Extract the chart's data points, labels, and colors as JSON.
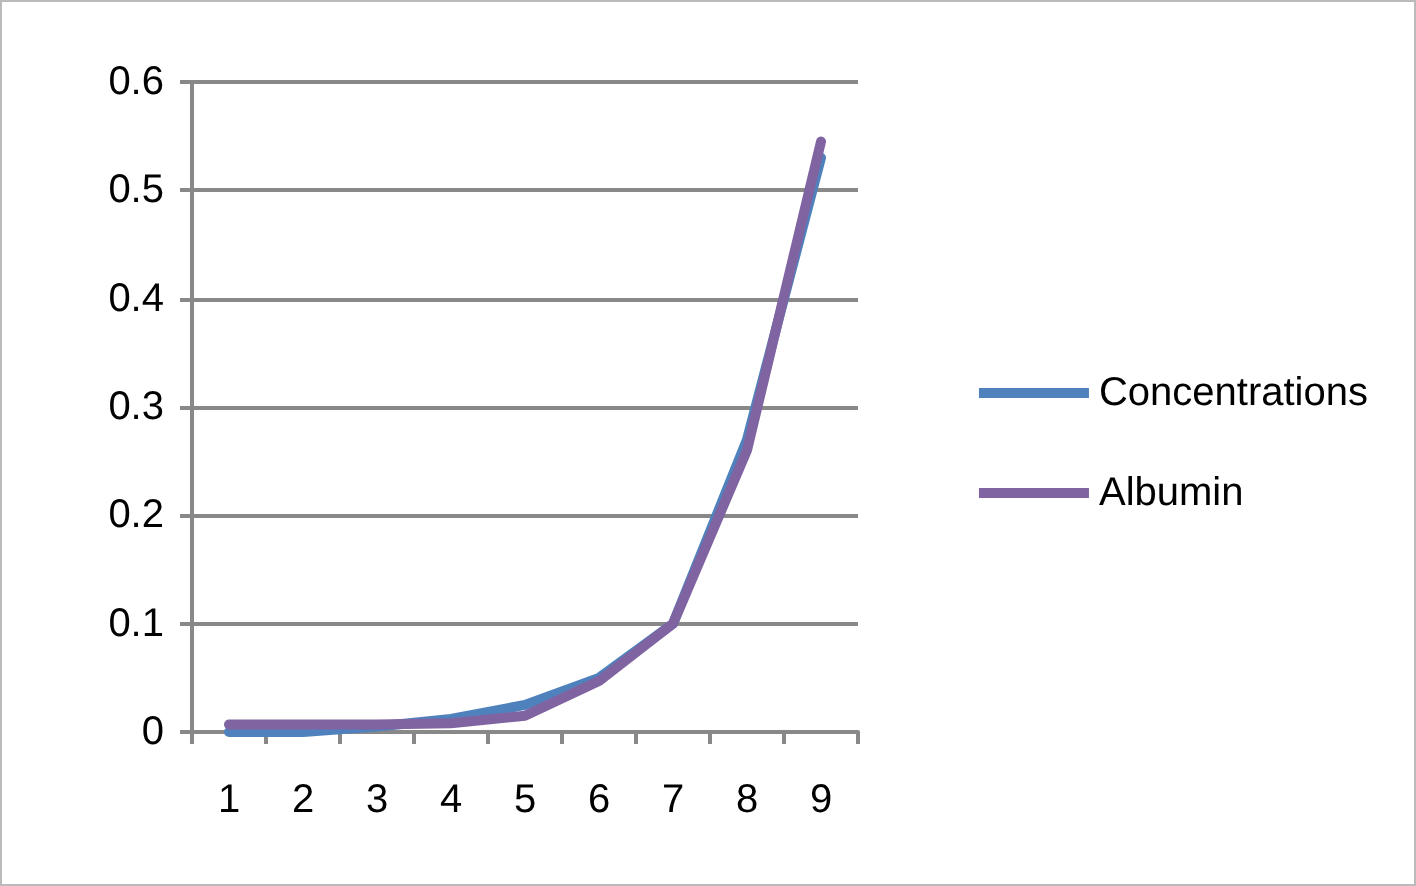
{
  "chart_data": {
    "type": "line",
    "categories": [
      "1",
      "2",
      "3",
      "4",
      "5",
      "6",
      "7",
      "8",
      "9"
    ],
    "series": [
      {
        "name": "Concentrations",
        "color": "#4f81bd",
        "values": [
          0.0,
          0.0,
          0.005,
          0.012,
          0.025,
          0.05,
          0.1,
          0.27,
          0.53
        ]
      },
      {
        "name": "Albumin",
        "color": "#8064a2",
        "values": [
          0.007,
          0.007,
          0.007,
          0.008,
          0.015,
          0.047,
          0.1,
          0.26,
          0.545
        ]
      }
    ],
    "ylim": [
      0,
      0.6
    ],
    "yticks": [
      0,
      0.1,
      0.2,
      0.3,
      0.4,
      0.5,
      0.6
    ],
    "grid": "y",
    "legend": "right",
    "marker": "none"
  }
}
